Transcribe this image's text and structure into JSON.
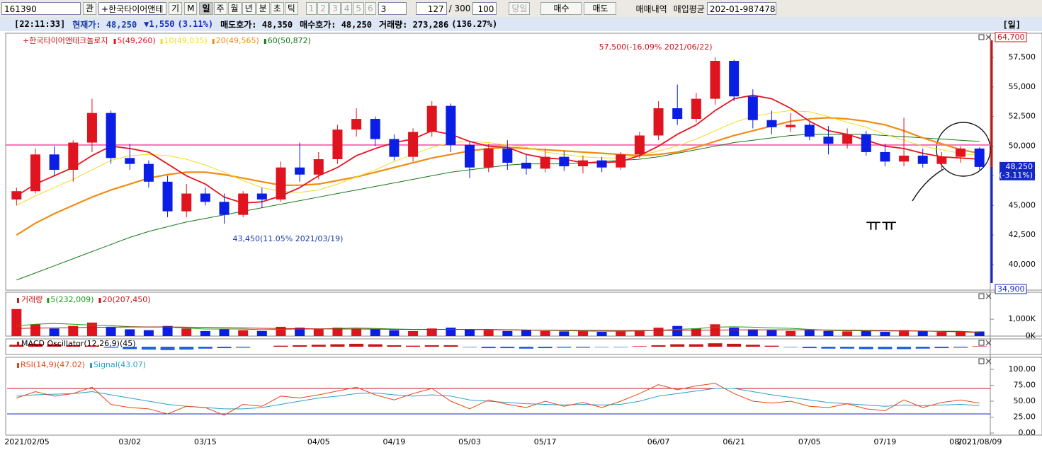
{
  "toolbar": {
    "code": "161390",
    "btn_gwan": "관",
    "stock_name": "+한국타이어앤테",
    "btn_gi": "기",
    "btn_m": "M",
    "periods": [
      "일",
      "주",
      "월",
      "년",
      "분",
      "초",
      "틱"
    ],
    "numbers": [
      "1",
      "2",
      "3",
      "4",
      "5",
      "6"
    ],
    "unit": "3",
    "count": "127",
    "total": "/ 300",
    "zoom": "100",
    "today": "당일",
    "buy": "매수",
    "sell": "매도",
    "trade_history": "매매내역",
    "avg_buy": "매입평균",
    "account": "202-01-987478"
  },
  "info_bar": {
    "time": "[22:11:33]",
    "price": "현재가: 48,250",
    "change": "▼1,550",
    "change_pct": "(3.11%)",
    "ask": "매도호가: 48,350",
    "bid": "매수호가: 48,250",
    "volume": "거래량: 273,286",
    "volume_pct": "(136.27%)",
    "period": "[일]"
  },
  "handwritten_note": "ㅠㅠ",
  "chart_data": [
    {
      "type": "candlestick",
      "title": "+한국타이어앤테크놀로지",
      "categories": [
        "2021/02/05",
        null,
        null,
        null,
        null,
        null,
        "03/02",
        null,
        null,
        null,
        "03/15",
        null,
        null,
        null,
        null,
        null,
        "04/05",
        null,
        null,
        null,
        "04/19",
        null,
        null,
        null,
        "05/03",
        null,
        null,
        null,
        "05/17",
        null,
        null,
        null,
        null,
        null,
        "06/07",
        null,
        null,
        null,
        "06/21",
        null,
        null,
        null,
        "07/05",
        null,
        null,
        null,
        "07/19",
        null,
        null,
        null,
        "08/02",
        "2021/08/09"
      ],
      "open": [
        45500,
        46200,
        49300,
        48000,
        50300,
        52800,
        49000,
        48500,
        47000,
        44500,
        46000,
        45300,
        44200,
        46000,
        45500,
        48200,
        47600,
        48900,
        51400,
        52300,
        50600,
        49100,
        51200,
        53400,
        50100,
        48200,
        49800,
        48600,
        48100,
        49100,
        48300,
        48800,
        48200,
        49300,
        50900,
        53200,
        52300,
        54000,
        57200,
        54200,
        52200,
        51600,
        51800,
        50800,
        50200,
        51000,
        49500,
        48700,
        49200,
        48500,
        49100,
        49800
      ],
      "high": [
        46500,
        49800,
        50000,
        50500,
        54000,
        53000,
        50200,
        48800,
        47500,
        46800,
        46500,
        46000,
        46200,
        46500,
        48700,
        50300,
        49500,
        51800,
        53200,
        52500,
        51000,
        51500,
        53800,
        53600,
        50400,
        50200,
        50500,
        49300,
        49800,
        49600,
        49200,
        49100,
        49500,
        51200,
        53800,
        55200,
        54500,
        57500,
        57300,
        54800,
        53000,
        52800,
        52000,
        51700,
        51500,
        51300,
        50200,
        52400,
        49800,
        49500,
        50000,
        49900
      ],
      "low": [
        45000,
        46000,
        47500,
        47000,
        49500,
        48500,
        48000,
        46500,
        44000,
        44000,
        45000,
        43450,
        44000,
        44800,
        45300,
        47000,
        47200,
        48500,
        50800,
        50000,
        48800,
        48700,
        50800,
        49500,
        47300,
        47800,
        48000,
        47600,
        47800,
        47900,
        47700,
        47800,
        48000,
        49000,
        50500,
        51800,
        52000,
        53500,
        53800,
        51500,
        51000,
        51200,
        50500,
        49300,
        49800,
        49200,
        48300,
        48300,
        48200,
        48000,
        48600,
        48000
      ],
      "close": [
        46200,
        49300,
        48000,
        50300,
        52800,
        49000,
        48500,
        47000,
        44500,
        46000,
        45300,
        44200,
        46000,
        45500,
        48200,
        47600,
        48900,
        51400,
        52300,
        50600,
        49100,
        51200,
        53400,
        50100,
        48200,
        49800,
        48600,
        48100,
        49100,
        48300,
        48800,
        48200,
        49300,
        50900,
        53200,
        52300,
        54000,
        57200,
        54200,
        52200,
        51600,
        51800,
        50800,
        50200,
        51000,
        49500,
        48700,
        49200,
        48500,
        49100,
        49800,
        48250
      ],
      "series": [
        {
          "name": "5(49,260)",
          "color": "#e8141e",
          "values": [
            45800,
            46800,
            47500,
            48200,
            49200,
            50000,
            49800,
            49500,
            48500,
            47500,
            46800,
            45700,
            45200,
            45300,
            45800,
            46500,
            47500,
            48200,
            49200,
            49800,
            50300,
            50600,
            51300,
            51000,
            50400,
            50000,
            49900,
            49300,
            49000,
            48900,
            48600,
            48600,
            48700,
            49200,
            50000,
            51000,
            51800,
            53000,
            54000,
            54300,
            54000,
            53200,
            52100,
            51300,
            51000,
            50500,
            50000,
            49800,
            49400,
            49100,
            49000,
            48900
          ]
        },
        {
          "name": "10(49,035)",
          "color": "#f0dc1e",
          "values": [
            45000,
            45800,
            46500,
            47200,
            48000,
            48800,
            49200,
            49300,
            49200,
            48900,
            48400,
            47800,
            47100,
            46500,
            46200,
            46100,
            46300,
            46800,
            47400,
            48000,
            48700,
            49300,
            49900,
            50300,
            50400,
            50300,
            50100,
            49900,
            49500,
            49300,
            49100,
            49000,
            49000,
            49200,
            49600,
            50000,
            50600,
            51300,
            52000,
            52500,
            52800,
            53000,
            52900,
            52500,
            52000,
            51600,
            51000,
            50500,
            50000,
            49700,
            49400,
            49200
          ]
        },
        {
          "name": "20(49,565)",
          "color": "#f08c14",
          "values": [
            42500,
            43500,
            44300,
            45000,
            45700,
            46300,
            46800,
            47300,
            47600,
            47800,
            47800,
            47600,
            47300,
            47000,
            46700,
            46700,
            46800,
            47100,
            47400,
            47800,
            48200,
            48600,
            49000,
            49300,
            49600,
            49800,
            49900,
            49800,
            49700,
            49600,
            49500,
            49400,
            49300,
            49200,
            49300,
            49500,
            49900,
            50400,
            50900,
            51300,
            51700,
            52100,
            52300,
            52400,
            52300,
            52100,
            51800,
            51300,
            50700,
            50200,
            49700,
            49400
          ]
        },
        {
          "name": "60(50,872)",
          "color": "#147814",
          "values": [
            38700,
            39300,
            39900,
            40500,
            41100,
            41700,
            42300,
            42800,
            43200,
            43600,
            43900,
            44200,
            44500,
            44800,
            45100,
            45400,
            45700,
            46000,
            46300,
            46600,
            46900,
            47200,
            47500,
            47800,
            48000,
            48200,
            48400,
            48500,
            48500,
            48500,
            48600,
            48700,
            48800,
            48900,
            49100,
            49400,
            49700,
            50000,
            50300,
            50500,
            50700,
            50900,
            51000,
            51000,
            51000,
            51000,
            50900,
            50800,
            50700,
            50600,
            50500,
            50400
          ]
        }
      ],
      "up_color": "#e0141e",
      "down_color": "#0a1ee6",
      "ylim": [
        37850,
        59530
      ],
      "yticks": [
        {
          "value": 40000,
          "label": "40,000"
        },
        {
          "value": 42500,
          "label": "42,500"
        },
        {
          "value": 45000,
          "label": "45,000"
        },
        {
          "value": 47500,
          "label": "47,500"
        },
        {
          "value": 50000,
          "label": "50,000"
        },
        {
          "value": 52500,
          "label": "52,500"
        },
        {
          "value": 55000,
          "label": "55,000"
        },
        {
          "value": 57500,
          "label": "57,500"
        }
      ],
      "avg_price": 50100,
      "avg_color": "#ff6eb4",
      "max_label": "64,700",
      "min_label": "34,900",
      "current_label": "48,250",
      "current_change": "(-3.11%)",
      "high_annotation": "57,500(-16.09% 2021/06/22)",
      "low_annotation": "43,450(11.05% 2021/03/19)"
    },
    {
      "type": "volume",
      "title": "거래량",
      "values": [
        1600000,
        700000,
        450000,
        600000,
        800000,
        550000,
        400000,
        350000,
        600000,
        450000,
        300000,
        400000,
        350000,
        300000,
        550000,
        500000,
        400000,
        500000,
        450000,
        400000,
        350000,
        300000,
        450000,
        500000,
        400000,
        350000,
        300000,
        350000,
        300000,
        280000,
        300000,
        250000,
        300000,
        350000,
        500000,
        600000,
        450000,
        700000,
        500000,
        400000,
        350000,
        300000,
        350000,
        300000,
        280000,
        300000,
        250000,
        350000,
        300000,
        250000,
        280000,
        273286
      ],
      "series": [
        {
          "name": "5(232,009)",
          "color": "#14a014",
          "values": [
            600000,
            700000,
            750000,
            700000,
            650000,
            620000,
            560000,
            540000,
            540000,
            470000,
            420000,
            420000,
            420000,
            380000,
            400000,
            420000,
            420000,
            450000,
            480000,
            450000,
            420000,
            400000,
            390000,
            400000,
            400000,
            400000,
            380000,
            360000,
            340000,
            320000,
            300000,
            290000,
            290000,
            300000,
            340000,
            400000,
            440000,
            530000,
            550000,
            530000,
            480000,
            460000,
            400000,
            340000,
            320000,
            310000,
            300000,
            300000,
            300000,
            290000,
            290000,
            232009
          ]
        },
        {
          "name": "20(207,450)",
          "color": "#c81414",
          "values": [
            450000,
            470000,
            480000,
            500000,
            520000,
            530000,
            540000,
            540000,
            540000,
            530000,
            520000,
            500000,
            480000,
            460000,
            450000,
            440000,
            430000,
            420000,
            420000,
            410000,
            400000,
            400000,
            400000,
            400000,
            390000,
            380000,
            370000,
            360000,
            350000,
            345000,
            340000,
            335000,
            330000,
            330000,
            335000,
            340000,
            345000,
            355000,
            365000,
            370000,
            370000,
            370000,
            365000,
            360000,
            350000,
            340000,
            330000,
            320000,
            300000,
            280000,
            250000,
            207450
          ]
        }
      ],
      "ylim": [
        0,
        2600000
      ],
      "yticks": [
        {
          "value": 0,
          "label": "0K"
        },
        {
          "value": 1000000,
          "label": "1,000K"
        }
      ]
    },
    {
      "type": "oscillator",
      "title": "MACD Oscillator(12,26,9)(45)",
      "values": [
        200,
        300,
        250,
        150,
        100,
        -100,
        -250,
        -300,
        -350,
        -300,
        -200,
        -150,
        -100,
        0,
        100,
        150,
        200,
        250,
        300,
        250,
        150,
        100,
        150,
        150,
        -50,
        -150,
        -150,
        -200,
        -150,
        -100,
        -100,
        -50,
        -50,
        50,
        150,
        250,
        250,
        350,
        300,
        200,
        100,
        -50,
        -150,
        -200,
        -200,
        -250,
        -250,
        -250,
        -200,
        -150,
        -100,
        45
      ],
      "ylim": [
        -800,
        800
      ]
    },
    {
      "type": "line",
      "series": [
        {
          "name": "RSI(14,9)(47.02)",
          "color": "#e64614",
          "values": [
            55,
            65,
            58,
            62,
            72,
            45,
            40,
            38,
            30,
            42,
            40,
            28,
            45,
            42,
            58,
            55,
            60,
            66,
            72,
            60,
            52,
            62,
            70,
            50,
            38,
            52,
            45,
            40,
            50,
            42,
            48,
            40,
            50,
            62,
            76,
            68,
            74,
            78,
            62,
            50,
            47,
            50,
            42,
            40,
            46,
            38,
            35,
            52,
            40,
            48,
            52,
            47.02
          ]
        },
        {
          "name": "Signal(43.07)",
          "color": "#28a0c8",
          "values": [
            58,
            60,
            61,
            62,
            65,
            60,
            55,
            50,
            45,
            42,
            40,
            38,
            38,
            40,
            45,
            50,
            55,
            58,
            62,
            63,
            60,
            58,
            60,
            58,
            52,
            50,
            48,
            46,
            45,
            44,
            45,
            44,
            45,
            50,
            58,
            62,
            66,
            70,
            70,
            65,
            60,
            56,
            52,
            48,
            46,
            44,
            42,
            44,
            43,
            44,
            45,
            43.07
          ]
        }
      ],
      "levels": [
        {
          "value": 70,
          "color": "#c81414"
        },
        {
          "value": 30,
          "color": "#1428c8"
        }
      ],
      "ylim": [
        -3.3,
        118.9
      ],
      "yticks": [
        {
          "value": 0,
          "label": "0.00"
        },
        {
          "value": 25,
          "label": "25.00"
        },
        {
          "value": 50,
          "label": "50.00"
        },
        {
          "value": 75,
          "label": "75.00"
        },
        {
          "value": 100,
          "label": "100.00"
        }
      ]
    }
  ]
}
